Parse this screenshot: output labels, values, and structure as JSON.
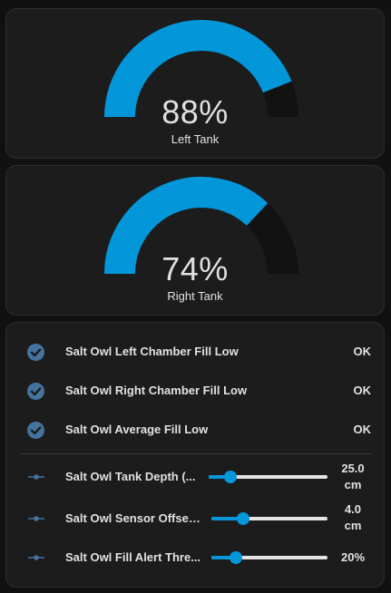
{
  "gauges": [
    {
      "value_text": "88%",
      "name": "Left Tank",
      "level": 0.88
    },
    {
      "value_text": "74%",
      "name": "Right Tank",
      "level": 0.74
    }
  ],
  "colors": {
    "accent": "#0397da",
    "gauge_track": "#121212",
    "icon": "#44739e"
  },
  "entities": {
    "binary": [
      {
        "label": "Salt Owl Left Chamber Fill Low",
        "state": "OK",
        "icon": "check-circle-icon"
      },
      {
        "label": "Salt Owl Right Chamber Fill Low",
        "state": "OK",
        "icon": "check-circle-icon"
      },
      {
        "label": "Salt Owl Average Fill Low",
        "state": "OK",
        "icon": "check-circle-icon"
      }
    ],
    "numbers": [
      {
        "label": "Salt Owl Tank Depth (...",
        "value": "25.0",
        "unit": "cm",
        "level": 0.18,
        "icon": "slider-icon"
      },
      {
        "label": "Salt Owl Sensor Offset...",
        "value": "4.0",
        "unit": "cm",
        "level": 0.27,
        "icon": "slider-icon"
      },
      {
        "label": "Salt Owl Fill Alert Thre...",
        "value": "20%",
        "unit": "",
        "level": 0.21,
        "icon": "slider-icon"
      }
    ]
  }
}
